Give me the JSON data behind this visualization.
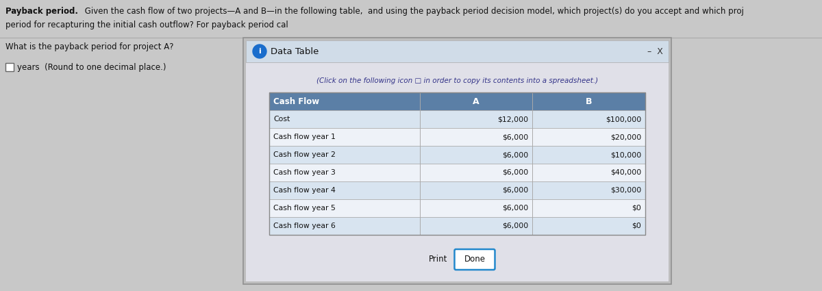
{
  "title_bold": "Payback period.",
  "title_text": " Given the cash flow of two projects—A and B—in the following table,  and using the payback period decision model, which project(s) do you accept and which proj",
  "line2_text": "period for recapturing the initial cash outflow? For payback period cal",
  "question_text": "What is the payback period for project A?",
  "answer_label": "years  (Round to one decimal place.)",
  "data_table_title": "Data Table",
  "click_text": "(Click on the following icon □ in order to copy its contents into a spreadsheet.)",
  "col_headers": [
    "Cash Flow",
    "A",
    "B"
  ],
  "rows": [
    [
      "Cost",
      "$12,000",
      "$100,000"
    ],
    [
      "Cash flow year 1",
      "$6,000",
      "$20,000"
    ],
    [
      "Cash flow year 2",
      "$6,000",
      "$10,000"
    ],
    [
      "Cash flow year 3",
      "$6,000",
      "$40,000"
    ],
    [
      "Cash flow year 4",
      "$6,000",
      "$30,000"
    ],
    [
      "Cash flow year 5",
      "$6,000",
      "$0"
    ],
    [
      "Cash flow year 6",
      "$6,000",
      "$0"
    ]
  ],
  "print_label": "Print",
  "done_label": "Done",
  "bg_color": "#c8c8c8",
  "panel_outer_bg": "#bebebe",
  "panel_inner_bg": "#e0e0e8",
  "titlebar_bg": "#d0dce8",
  "white": "#ffffff",
  "header_bg": "#5b7fa6",
  "header_text": "#ffffff",
  "row_odd_bg": "#d8e4f0",
  "row_even_bg": "#eef2f8",
  "border_color": "#888888",
  "text_color": "#111111",
  "title_color": "#111111",
  "done_border": "#2288cc",
  "info_icon_color": "#1a6dcc",
  "click_text_color": "#333388",
  "minus_color": "#333333",
  "x_color": "#333333",
  "separator_color": "#aaaaaa",
  "checkbox_border": "#666666"
}
